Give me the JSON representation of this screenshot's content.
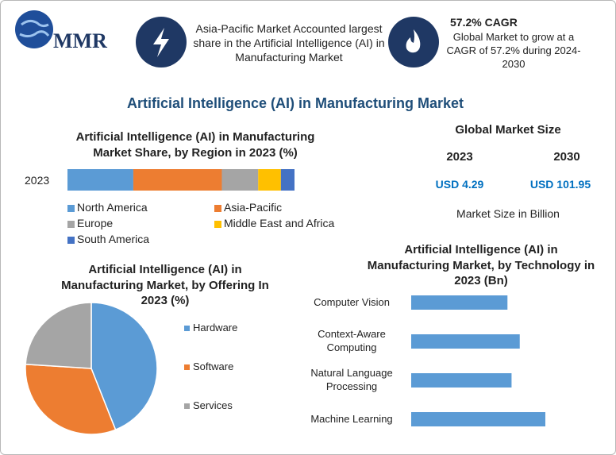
{
  "header": {
    "logo": "MMR",
    "highlight": "Asia-Pacific Market Accounted largest share in the Artificial Intelligence (AI) in Manufacturing Market",
    "cagr_title": "57.2% CAGR",
    "cagr_text": "Global Market to grow at a CAGR of 57.2% during 2024-2030"
  },
  "title": "Artificial Intelligence (AI) in Manufacturing Market",
  "market_size": {
    "title": "Global Market Size",
    "years": [
      "2023",
      "2030"
    ],
    "values": [
      "USD 4.29",
      "USD 101.95"
    ],
    "note": "Market Size in Billion"
  },
  "chart_data": [
    {
      "type": "stacked_bar",
      "title": "Artificial Intelligence (AI) in Manufacturing Market Share, by Region in 2023 (%)",
      "categories": [
        "2023"
      ],
      "series": [
        {
          "name": "North America",
          "color": "#5b9bd5",
          "values": [
            29
          ]
        },
        {
          "name": "Asia-Pacific",
          "color": "#ed7d31",
          "values": [
            39
          ]
        },
        {
          "name": "Europe",
          "color": "#a5a5a5",
          "values": [
            16
          ]
        },
        {
          "name": "Middle East and Africa",
          "color": "#ffc000",
          "values": [
            10
          ]
        },
        {
          "name": "South America",
          "color": "#4472c4",
          "values": [
            6
          ]
        }
      ]
    },
    {
      "type": "pie",
      "title": "Artificial Intelligence (AI) in Manufacturing Market, by Offering In 2023 (%)",
      "categories": [
        "Hardware",
        "Software",
        "Services"
      ],
      "values": [
        44,
        32,
        24
      ],
      "colors": [
        "#5b9bd5",
        "#ed7d31",
        "#a5a5a5"
      ]
    },
    {
      "type": "bar",
      "title": "Artificial Intelligence (AI) in Manufacturing Market, by Technology in 2023 (Bn)",
      "categories": [
        "Computer Vision",
        "Context-Aware Computing",
        "Natural Language Processing",
        "Machine Learning"
      ],
      "values": [
        0.94,
        1.06,
        0.98,
        1.31
      ],
      "color": "#5b9bd5"
    }
  ]
}
